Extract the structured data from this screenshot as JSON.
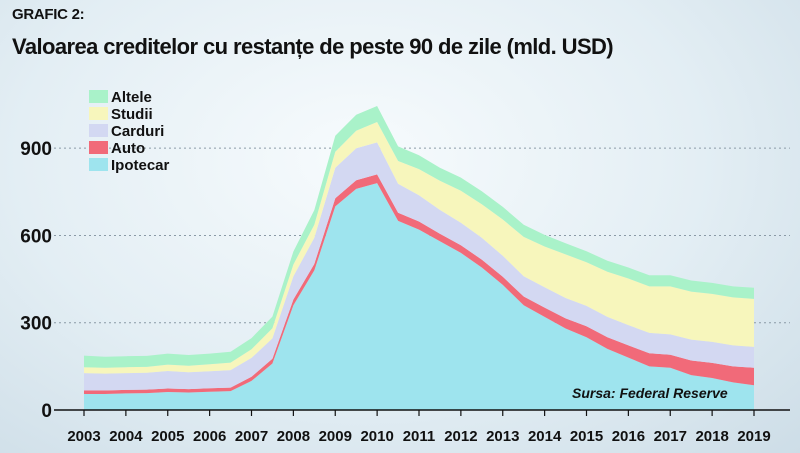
{
  "header": {
    "kicker": "GRAFIC 2:",
    "title": "Valoarea creditelor cu restanțe de peste 90 de zile (mld. USD)"
  },
  "source": "Sursa: Federal Reserve",
  "chart_data": {
    "type": "area",
    "stacked": true,
    "title": "Valoarea creditelor cu restanțe de peste 90 de zile (mld. USD)",
    "xlabel": "",
    "ylabel": "",
    "ylim": [
      0,
      1100
    ],
    "xlim": [
      2003,
      2019
    ],
    "y_ticks": [
      0,
      300,
      600,
      900
    ],
    "x_ticks": [
      2003,
      2004,
      2005,
      2006,
      2007,
      2008,
      2009,
      2010,
      2011,
      2012,
      2013,
      2014,
      2015,
      2016,
      2017,
      2018,
      2019
    ],
    "grid": "horizontal dotted",
    "legend_position": "top-left",
    "x": [
      2003,
      2003.5,
      2004,
      2004.5,
      2005,
      2005.5,
      2006,
      2006.5,
      2007,
      2007.5,
      2008,
      2008.5,
      2009,
      2009.5,
      2010,
      2010.5,
      2011,
      2011.5,
      2012,
      2012.5,
      2013,
      2013.5,
      2014,
      2014.5,
      2015,
      2015.5,
      2016,
      2016.5,
      2017,
      2017.5,
      2018,
      2018.5,
      2019
    ],
    "series": [
      {
        "name": "Ipotecar",
        "color": "#9ee4ee",
        "values": [
          55,
          55,
          57,
          58,
          62,
          60,
          63,
          65,
          100,
          160,
          360,
          480,
          700,
          760,
          780,
          650,
          620,
          580,
          540,
          490,
          430,
          360,
          320,
          280,
          250,
          210,
          180,
          150,
          145,
          120,
          110,
          95,
          85
        ]
      },
      {
        "name": "Auto",
        "color": "#f16a79",
        "values": [
          12,
          12,
          12,
          12,
          12,
          12,
          12,
          12,
          14,
          16,
          20,
          22,
          28,
          30,
          30,
          28,
          28,
          26,
          26,
          27,
          28,
          30,
          32,
          35,
          38,
          40,
          42,
          45,
          45,
          50,
          52,
          55,
          60
        ]
      },
      {
        "name": "Carduri",
        "color": "#d3d8f2",
        "values": [
          60,
          58,
          58,
          58,
          60,
          58,
          58,
          60,
          65,
          70,
          80,
          90,
          105,
          110,
          110,
          100,
          90,
          82,
          78,
          75,
          72,
          70,
          70,
          70,
          70,
          70,
          70,
          70,
          70,
          72,
          72,
          72,
          72
        ]
      },
      {
        "name": "Studii",
        "color": "#f7f6bc",
        "values": [
          20,
          20,
          20,
          20,
          22,
          22,
          24,
          26,
          30,
          35,
          40,
          45,
          55,
          60,
          70,
          78,
          90,
          100,
          110,
          115,
          125,
          135,
          140,
          150,
          150,
          155,
          160,
          160,
          165,
          165,
          165,
          165,
          165
        ]
      },
      {
        "name": "Altele",
        "color": "#a9f2c9",
        "values": [
          40,
          38,
          38,
          38,
          38,
          37,
          37,
          37,
          38,
          40,
          45,
          50,
          55,
          55,
          55,
          50,
          48,
          45,
          45,
          45,
          43,
          42,
          40,
          38,
          38,
          38,
          38,
          38,
          38,
          38,
          38,
          38,
          38
        ]
      }
    ]
  }
}
